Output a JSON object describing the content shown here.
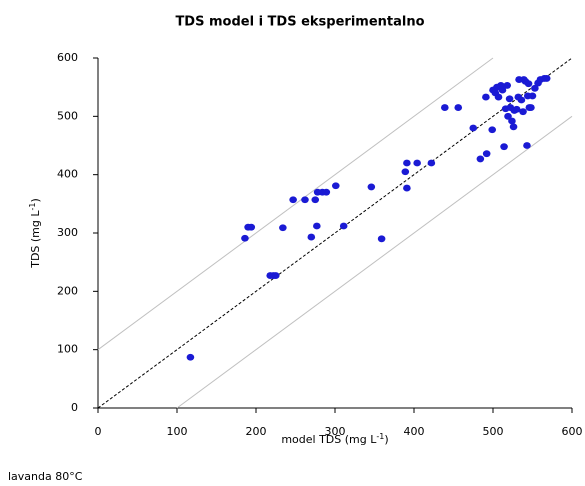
{
  "chart_data": {
    "type": "scatter",
    "title": "TDS  model i TDS eksperimentalno",
    "xlabel": [
      "model TDS (mg L",
      "-1",
      ")"
    ],
    "ylabel": [
      "TDS (mg L",
      "-1",
      ")"
    ],
    "note": "lavanda 80°C",
    "color": "#1a1ad4",
    "xlim": [
      0,
      600
    ],
    "ylim": [
      0,
      600
    ],
    "xticks": [
      0,
      100,
      200,
      300,
      400,
      500,
      600
    ],
    "yticks": [
      0,
      100,
      200,
      300,
      400,
      500,
      600
    ],
    "lines": [
      {
        "x": [
          0,
          600
        ],
        "y": [
          0,
          600
        ],
        "color": "#000000",
        "dashed": true
      },
      {
        "x": [
          0,
          500
        ],
        "y": [
          100,
          600
        ],
        "color": "#c0c0c0",
        "dashed": false
      },
      {
        "x": [
          100,
          600
        ],
        "y": [
          0,
          500
        ],
        "color": "#c0c0c0",
        "dashed": false
      }
    ],
    "x": [
      117,
      186,
      190,
      194,
      218,
      222,
      225,
      234,
      247,
      262,
      275,
      270,
      277,
      278,
      284,
      289,
      301,
      311,
      346,
      359,
      391,
      389,
      391,
      404,
      422,
      439,
      456,
      475,
      484,
      492,
      491,
      499,
      500,
      503,
      505,
      507,
      510,
      512,
      514,
      516,
      518,
      519,
      521,
      522,
      524,
      526,
      527,
      530,
      532,
      533,
      536,
      538,
      539,
      541,
      543,
      544,
      545,
      546,
      548,
      550,
      553,
      557,
      560,
      565,
      568
    ],
    "y": [
      87,
      291,
      310,
      310,
      227,
      227,
      227,
      309,
      357,
      357,
      357,
      293,
      312,
      370,
      370,
      370,
      381,
      312,
      379,
      290,
      377,
      405,
      420,
      420,
      420,
      515,
      515,
      480,
      427,
      436,
      533,
      477,
      545,
      540,
      550,
      533,
      553,
      545,
      448,
      513,
      553,
      500,
      530,
      515,
      492,
      482,
      510,
      512,
      533,
      563,
      528,
      508,
      563,
      560,
      450,
      535,
      556,
      515,
      515,
      535,
      548,
      557,
      563,
      565,
      565
    ]
  }
}
